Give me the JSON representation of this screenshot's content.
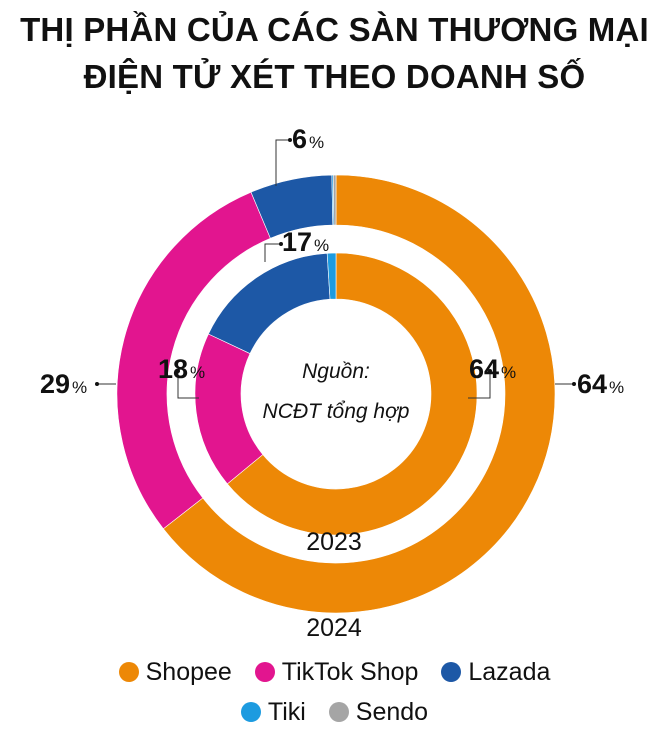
{
  "title_lines": [
    "THỊ PHẦN CỦA CÁC SÀN THƯƠNG MẠI",
    "ĐIỆN TỬ XÉT THEO DOANH SỐ"
  ],
  "source_lines": [
    "Nguồn:",
    "NCĐT tổng hợp"
  ],
  "chart_data": {
    "type": "pie",
    "variant": "nested-donut",
    "categories": [
      "Shopee",
      "TikTok Shop",
      "Lazada",
      "Tiki",
      "Sendo"
    ],
    "colors": [
      "#ED8806",
      "#E2158F",
      "#1D58A6",
      "#1D9BE0",
      "#A5A5A5"
    ],
    "series": [
      {
        "name": "2024",
        "ring": "outer",
        "values": [
          64,
          29,
          6,
          0.1,
          0.2
        ],
        "labels": {
          "Shopee": "64",
          "TikTok Shop": "29",
          "Lazada": "6"
        }
      },
      {
        "name": "2023",
        "ring": "inner",
        "values": [
          64,
          18,
          17,
          1,
          0
        ],
        "labels": {
          "Shopee": "64",
          "TikTok Shop": "18",
          "Lazada": "17"
        }
      }
    ],
    "unit": "%",
    "legend_position": "bottom"
  },
  "legend": [
    {
      "label": "Shopee",
      "color": "#ED8806"
    },
    {
      "label": "TikTok Shop",
      "color": "#E2158F"
    },
    {
      "label": "Lazada",
      "color": "#1D58A6"
    },
    {
      "label": "Tiki",
      "color": "#1D9BE0"
    },
    {
      "label": "Sendo",
      "color": "#A5A5A5"
    }
  ]
}
